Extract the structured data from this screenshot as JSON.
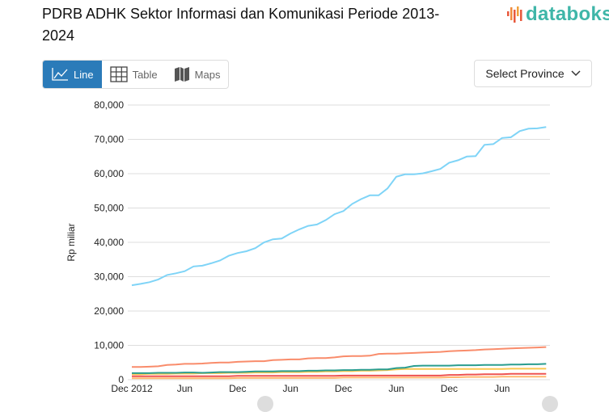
{
  "header": {
    "title": "PDRB ADHK Sektor Informasi dan Komunikasi Periode 2013-2024",
    "logo_text": "databoks"
  },
  "tabs": [
    {
      "label": "Line",
      "icon": "line-chart-icon",
      "active": true
    },
    {
      "label": "Table",
      "icon": "table-icon"
    },
    {
      "label": "Maps",
      "icon": "map-icon"
    }
  ],
  "province_select": {
    "label": "Select Province",
    "icon": "chevron-down-icon"
  },
  "colors": {
    "accent": "#2b7bb9",
    "brand": "#3fb6a8"
  },
  "chart_data": {
    "type": "line",
    "title": "",
    "xlabel": "",
    "ylabel": "Rp miliar",
    "ylim": [
      0,
      80000
    ],
    "yticks": [
      "0",
      "10,000",
      "20,000",
      "30,000",
      "40,000",
      "50,000",
      "60,000",
      "70,000",
      "80,000"
    ],
    "xtick_labels": [
      "Dec 2012",
      "Jun",
      "Dec",
      "Jun",
      "Dec",
      "Jun",
      "Dec",
      "Jun"
    ],
    "grid": true,
    "series": [
      {
        "color": "#7fd4f7",
        "values": [
          27500,
          27900,
          28400,
          29200,
          30500,
          31000,
          31600,
          33000,
          33200,
          33900,
          34700,
          36100,
          36900,
          37400,
          38300,
          40000,
          40900,
          41100,
          42600,
          43800,
          44800,
          45200,
          46500,
          48200,
          49100,
          51200,
          52600,
          53700,
          53700,
          55700,
          59100,
          59800,
          59800,
          60100,
          60700,
          61400,
          63200,
          63900,
          65000,
          65100,
          68400,
          68600,
          70400,
          70600,
          72400,
          73100,
          73200,
          73600
        ]
      },
      {
        "color": "#f98c6b",
        "values": [
          3700,
          3700,
          3800,
          3900,
          4300,
          4400,
          4600,
          4600,
          4700,
          4900,
          5000,
          5000,
          5200,
          5300,
          5400,
          5400,
          5700,
          5800,
          5900,
          5900,
          6200,
          6300,
          6300,
          6500,
          6800,
          6900,
          6900,
          7000,
          7500,
          7600,
          7600,
          7700,
          7800,
          7900,
          8000,
          8100,
          8300,
          8400,
          8500,
          8600,
          8800,
          8900,
          9000,
          9100,
          9200,
          9300,
          9400,
          9500
        ]
      },
      {
        "color": "#2a9d8f",
        "values": [
          1900,
          1900,
          1900,
          2000,
          2000,
          2000,
          2100,
          2100,
          2000,
          2100,
          2200,
          2200,
          2200,
          2300,
          2400,
          2400,
          2400,
          2500,
          2500,
          2500,
          2600,
          2600,
          2700,
          2700,
          2800,
          2800,
          2900,
          2900,
          3000,
          3000,
          3400,
          3500,
          4000,
          4100,
          4100,
          4100,
          4100,
          4200,
          4200,
          4200,
          4300,
          4300,
          4300,
          4400,
          4400,
          4500,
          4500,
          4600
        ]
      },
      {
        "color": "#f9c74f",
        "values": [
          1600,
          1600,
          1700,
          1700,
          1700,
          1800,
          1800,
          1800,
          1900,
          1900,
          1900,
          2000,
          2000,
          2000,
          2100,
          2100,
          2100,
          2200,
          2200,
          2200,
          2300,
          2300,
          2400,
          2400,
          2500,
          2500,
          2600,
          2600,
          2700,
          2800,
          3000,
          3100,
          3100,
          3100,
          3100,
          3100,
          3100,
          3100,
          3100,
          3100,
          3100,
          3100,
          3100,
          3200,
          3200,
          3200,
          3200,
          3200
        ]
      },
      {
        "color": "#ef5350",
        "values": [
          1000,
          1000,
          1000,
          1000,
          1000,
          1000,
          1000,
          1000,
          1000,
          1000,
          1000,
          1000,
          1100,
          1100,
          1100,
          1100,
          1100,
          1100,
          1100,
          1100,
          1100,
          1100,
          1100,
          1100,
          1200,
          1200,
          1200,
          1200,
          1200,
          1200,
          1200,
          1200,
          1200,
          1200,
          1200,
          1200,
          1400,
          1400,
          1500,
          1500,
          1600,
          1600,
          1600,
          1700,
          1700,
          1700,
          1700,
          1700
        ]
      },
      {
        "color": "#ffb870",
        "values": [
          400,
          400,
          400,
          400,
          400,
          400,
          400,
          400,
          400,
          400,
          400,
          400,
          500,
          500,
          500,
          500,
          500,
          500,
          500,
          500,
          500,
          500,
          500,
          500,
          600,
          600,
          600,
          600,
          600,
          600,
          600,
          600,
          600,
          600,
          600,
          600,
          700,
          700,
          800,
          800,
          800,
          800,
          900,
          900,
          900,
          900,
          900,
          900
        ]
      }
    ]
  }
}
